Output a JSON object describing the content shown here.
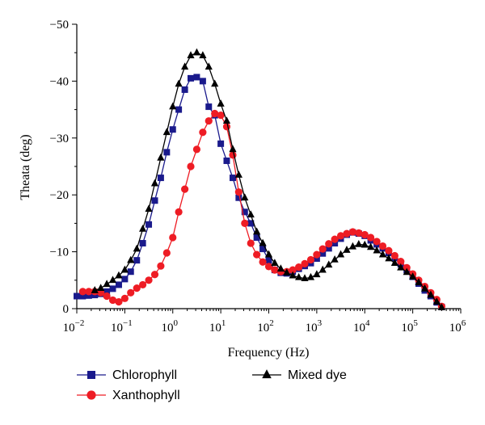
{
  "chart_data": {
    "type": "scatter",
    "xlabel": "Frequency (Hz)",
    "ylabel": "Theata (deg)",
    "xscale": "log",
    "xlim": [
      0.01,
      1000000
    ],
    "ylim": [
      0,
      -50
    ],
    "y_axis_inverted": true,
    "x_tick_labels": [
      {
        "base": "10",
        "exp": "−2"
      },
      {
        "base": "10",
        "exp": "−1"
      },
      {
        "base": "10",
        "exp": "0"
      },
      {
        "base": "10",
        "exp": "1"
      },
      {
        "base": "10",
        "exp": "2"
      },
      {
        "base": "10",
        "exp": "3"
      },
      {
        "base": "10",
        "exp": "4"
      },
      {
        "base": "10",
        "exp": "5"
      },
      {
        "base": "10",
        "exp": "6"
      }
    ],
    "y_tick_labels": [
      "0",
      "−10",
      "−20",
      "−30",
      "−40",
      "−50"
    ],
    "y_tick_values": [
      0,
      -10,
      -20,
      -30,
      -40,
      -50
    ],
    "grid": false,
    "legend_position": "bottom",
    "series": [
      {
        "name": "Chlorophyll",
        "color": "#1a1a8c",
        "marker": "square",
        "x": [
          0.01,
          0.0133,
          0.0178,
          0.0237,
          0.0316,
          0.0422,
          0.0562,
          0.075,
          0.1,
          0.133,
          0.178,
          0.237,
          0.316,
          0.422,
          0.562,
          0.75,
          1.0,
          1.33,
          1.78,
          2.37,
          3.16,
          4.22,
          5.62,
          7.5,
          10,
          13.3,
          17.8,
          23.7,
          31.6,
          42.2,
          56.2,
          75,
          100,
          133,
          178,
          237,
          316,
          422,
          562,
          750,
          1000,
          1330,
          1780,
          2370,
          3160,
          4220,
          5620,
          7500,
          10000,
          13300,
          17800,
          23700,
          31600,
          42200,
          56200,
          75000,
          100000,
          133000,
          178000,
          237000,
          316000,
          400000
        ],
        "y": [
          -2.2,
          -2.2,
          -2.3,
          -2.4,
          -2.6,
          -3.0,
          -3.5,
          -4.2,
          -5.2,
          -6.5,
          -8.5,
          -11.5,
          -14.8,
          -19.0,
          -23.0,
          -27.5,
          -31.5,
          -35.0,
          -38.5,
          -40.5,
          -40.7,
          -40.0,
          -35.5,
          -34.0,
          -29.0,
          -26.0,
          -23.0,
          -19.5,
          -17.0,
          -15.0,
          -12.5,
          -10.5,
          -8.5,
          -6.8,
          -6.3,
          -6.2,
          -6.5,
          -7.0,
          -7.5,
          -8.0,
          -8.8,
          -9.7,
          -10.6,
          -11.5,
          -12.3,
          -13.0,
          -13.4,
          -13.2,
          -12.8,
          -12.0,
          -11.3,
          -10.6,
          -9.8,
          -8.9,
          -7.8,
          -6.8,
          -5.6,
          -4.4,
          -3.2,
          -2.2,
          -1.1,
          -0.3
        ]
      },
      {
        "name": "Xanthophyll",
        "color": "#ee1c24",
        "marker": "circle",
        "x": [
          0.0133,
          0.0178,
          0.0237,
          0.0316,
          0.0422,
          0.0562,
          0.075,
          0.1,
          0.133,
          0.178,
          0.237,
          0.316,
          0.422,
          0.562,
          0.75,
          1.0,
          1.33,
          1.78,
          2.37,
          3.16,
          4.22,
          5.62,
          7.5,
          10,
          13.3,
          17.8,
          23.7,
          31.6,
          42.2,
          56.2,
          75,
          100,
          133,
          178,
          237,
          316,
          422,
          562,
          750,
          1000,
          1330,
          1780,
          2370,
          3160,
          4220,
          5620,
          7500,
          10000,
          13300,
          17800,
          23700,
          31600,
          42200,
          56200,
          75000,
          100000,
          133000,
          178000,
          237000,
          316000,
          400000
        ],
        "y": [
          -3.0,
          -3.0,
          -3.0,
          -2.8,
          -2.2,
          -1.5,
          -1.2,
          -1.8,
          -2.8,
          -3.6,
          -4.2,
          -5.0,
          -6.0,
          -7.5,
          -9.8,
          -12.5,
          -17.0,
          -21.0,
          -25.0,
          -28.0,
          -31.0,
          -33.0,
          -34.3,
          -34.0,
          -32.0,
          -27.0,
          -20.5,
          -15.0,
          -11.5,
          -9.5,
          -8.2,
          -7.4,
          -6.8,
          -6.5,
          -6.5,
          -6.8,
          -7.3,
          -7.9,
          -8.6,
          -9.5,
          -10.5,
          -11.4,
          -12.2,
          -12.8,
          -13.2,
          -13.5,
          -13.3,
          -13.0,
          -12.5,
          -11.8,
          -11.0,
          -10.2,
          -9.3,
          -8.3,
          -7.2,
          -6.1,
          -5.0,
          -3.9,
          -2.8,
          -1.6,
          -0.4
        ]
      },
      {
        "name": "Mixed dye",
        "color": "#000000",
        "marker": "triangle",
        "x": [
          0.0237,
          0.0316,
          0.0422,
          0.0562,
          0.075,
          0.1,
          0.133,
          0.178,
          0.237,
          0.316,
          0.422,
          0.562,
          0.75,
          1.0,
          1.33,
          1.78,
          2.37,
          3.16,
          4.22,
          5.62,
          7.5,
          10,
          13.3,
          17.8,
          23.7,
          31.6,
          42.2,
          56.2,
          75,
          100,
          133,
          178,
          237,
          316,
          422,
          562,
          750,
          1000,
          1330,
          1780,
          2370,
          3160,
          4220,
          5620,
          7500,
          10000,
          13300,
          17800,
          23700,
          31600,
          42200,
          56200,
          75000,
          100000,
          133000,
          178000,
          237000,
          316000,
          400000
        ],
        "y": [
          -3.2,
          -3.6,
          -4.3,
          -5.0,
          -5.8,
          -6.8,
          -8.5,
          -10.5,
          -14.0,
          -17.5,
          -22.0,
          -26.5,
          -31.0,
          -35.5,
          -39.5,
          -42.5,
          -44.5,
          -45.0,
          -44.5,
          -42.5,
          -39.5,
          -36.0,
          -33.0,
          -28.0,
          -23.5,
          -19.5,
          -16.5,
          -13.5,
          -11.5,
          -9.5,
          -8.0,
          -7.0,
          -6.3,
          -5.8,
          -5.5,
          -5.3,
          -5.5,
          -6.0,
          -6.8,
          -7.7,
          -8.6,
          -9.5,
          -10.3,
          -10.9,
          -11.3,
          -11.2,
          -10.8,
          -10.2,
          -9.5,
          -8.8,
          -8.0,
          -7.2,
          -6.4,
          -5.6,
          -4.6,
          -3.5,
          -2.4,
          -1.2,
          -0.2
        ]
      }
    ]
  }
}
